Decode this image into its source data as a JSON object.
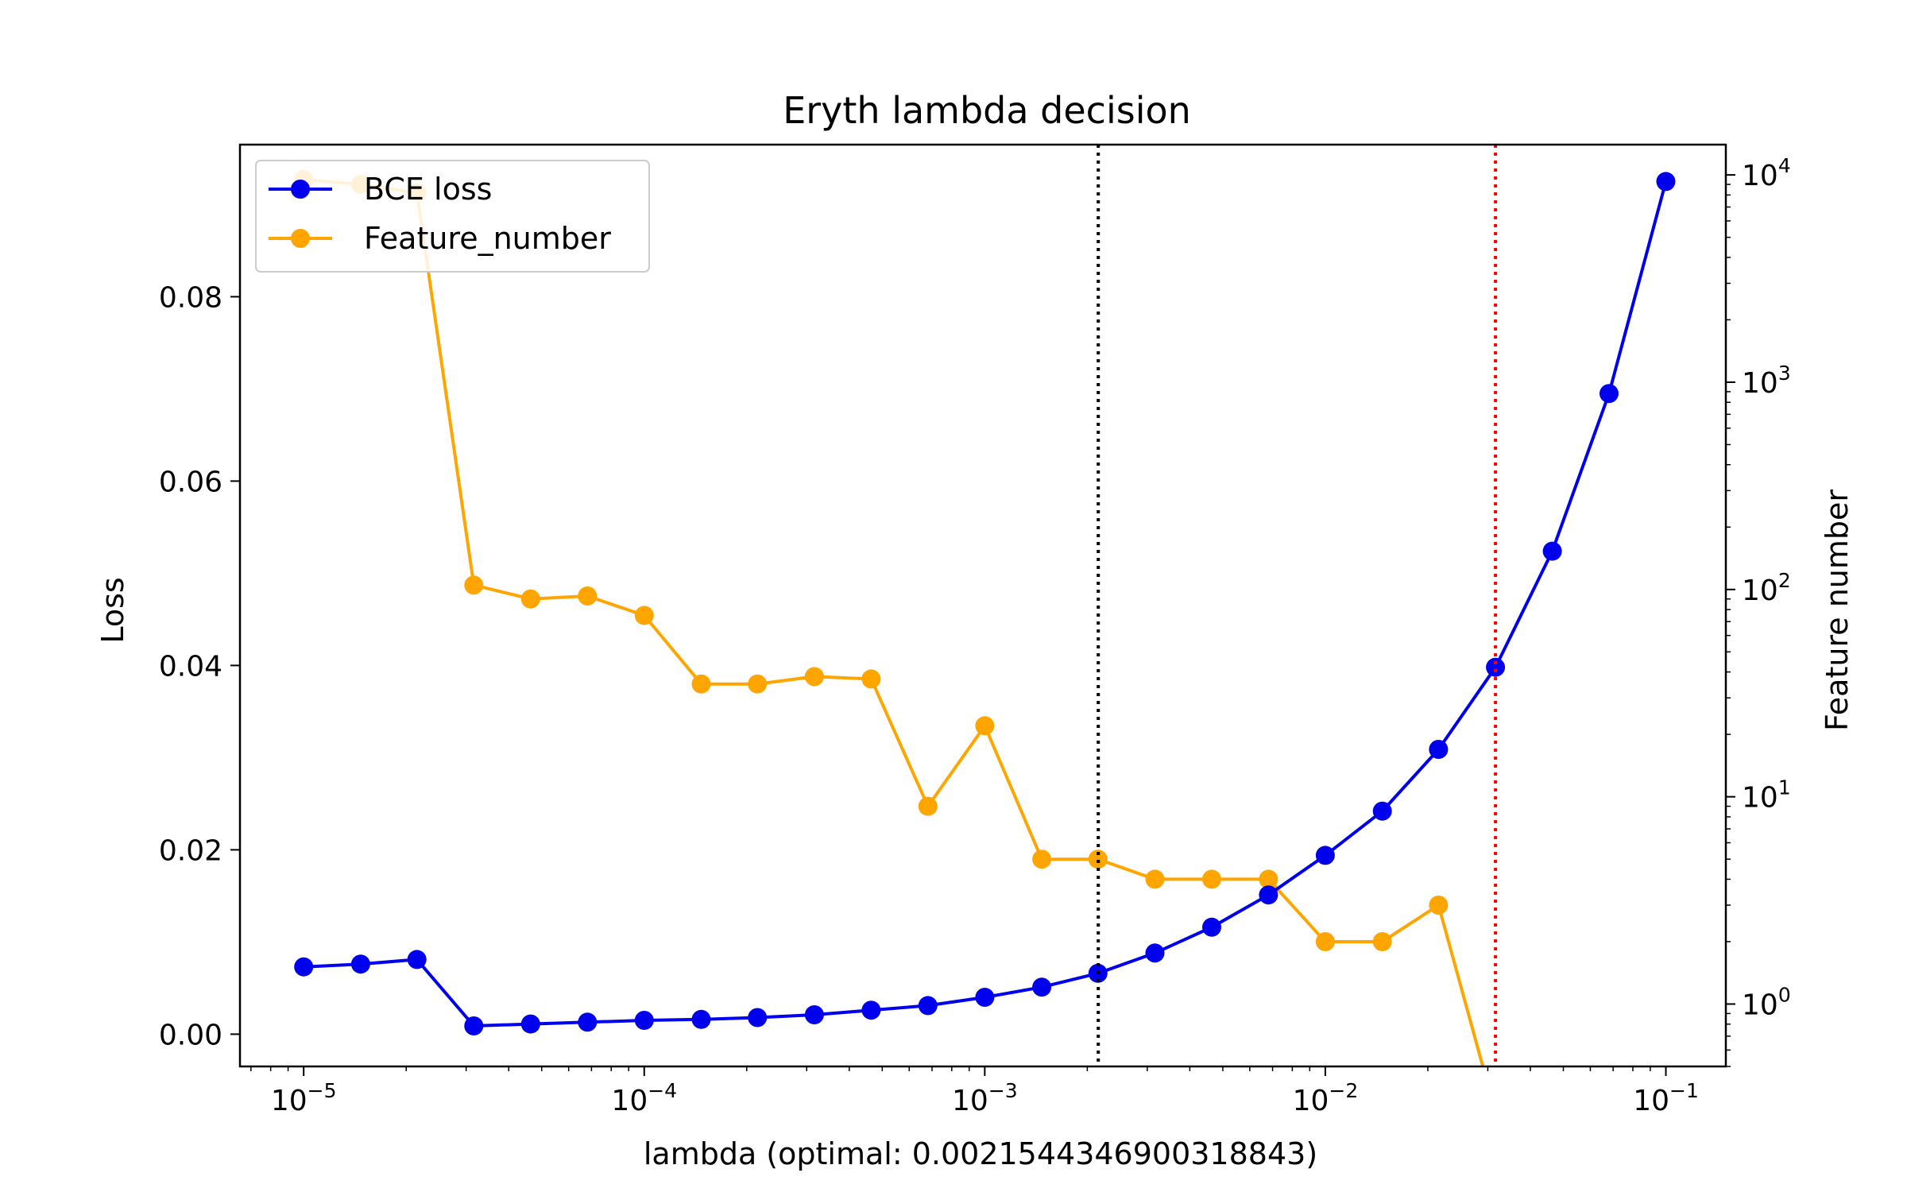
{
  "chart_data": {
    "type": "line",
    "title": "Eryth lambda decision",
    "xlabel": "lambda (optimal: 0.0021544346900318843)",
    "ylabel": "Loss",
    "y2label": "Feature number",
    "xscale": "log",
    "y2scale": "log",
    "xlim": [
      6.5e-06,
      0.15
    ],
    "ylim": [
      -0.0035,
      0.0965
    ],
    "y2lim": [
      0.5,
      14000
    ],
    "x": [
      1e-05,
      1.47e-05,
      2.15e-05,
      3.16e-05,
      4.64e-05,
      6.81e-05,
      0.0001,
      0.000147,
      0.000215,
      0.000316,
      0.000464,
      0.000681,
      0.001,
      0.00147,
      0.00215,
      0.00316,
      0.00464,
      0.00681,
      0.01,
      0.0147,
      0.0215,
      0.0316,
      0.0464,
      0.0681,
      0.1
    ],
    "x_ticks": [
      {
        "value": 1e-05,
        "base": "10",
        "exp": "−5"
      },
      {
        "value": 0.0001,
        "base": "10",
        "exp": "−4"
      },
      {
        "value": 0.001,
        "base": "10",
        "exp": "−3"
      },
      {
        "value": 0.01,
        "base": "10",
        "exp": "−2"
      },
      {
        "value": 0.1,
        "base": "10",
        "exp": "−1"
      }
    ],
    "y_ticks": [
      {
        "value": 0.0,
        "label": "0.00"
      },
      {
        "value": 0.02,
        "label": "0.02"
      },
      {
        "value": 0.04,
        "label": "0.04"
      },
      {
        "value": 0.06,
        "label": "0.06"
      },
      {
        "value": 0.08,
        "label": "0.08"
      }
    ],
    "y2_ticks": [
      {
        "value": 1,
        "base": "10",
        "exp": "0"
      },
      {
        "value": 10,
        "base": "10",
        "exp": "1"
      },
      {
        "value": 100,
        "base": "10",
        "exp": "2"
      },
      {
        "value": 1000,
        "base": "10",
        "exp": "3"
      },
      {
        "value": 10000,
        "base": "10",
        "exp": "4"
      }
    ],
    "series": [
      {
        "name": "BCE loss",
        "axis": "left",
        "color": "#0000ee",
        "values": [
          0.0073,
          0.0076,
          0.0081,
          0.0009,
          0.0011,
          0.0013,
          0.0015,
          0.0016,
          0.0018,
          0.0021,
          0.0026,
          0.0031,
          0.004,
          0.0051,
          0.0066,
          0.0088,
          0.0116,
          0.0151,
          0.0194,
          0.0242,
          0.0309,
          0.0398,
          0.0524,
          0.0695,
          0.0925
        ]
      },
      {
        "name": "Feature_number",
        "axis": "right",
        "color": "#ffa500",
        "values": [
          9500,
          9000,
          8200,
          105,
          90,
          93,
          75,
          35,
          35,
          38,
          37,
          9,
          22,
          5,
          5,
          4,
          4,
          4,
          2,
          2,
          3,
          0.3,
          null,
          null,
          null
        ]
      }
    ],
    "vlines": [
      {
        "x": 0.0021544346900318843,
        "color": "#000000",
        "style": "dotted"
      },
      {
        "x": 0.0316,
        "color": "#ff0000",
        "style": "dotted"
      }
    ],
    "legend": "top-left",
    "grid": false
  }
}
